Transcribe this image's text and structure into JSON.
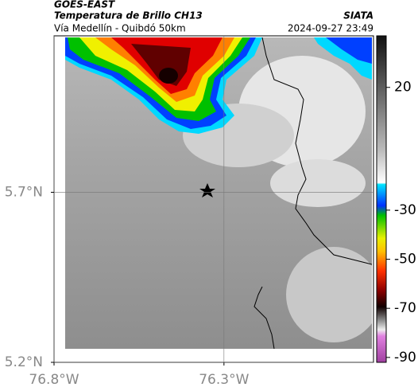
{
  "header": {
    "title": "GOES-EAST",
    "subtitle": "Temperatura de Brillo CH13",
    "location": "Vía Medellín - Quibdó 50km",
    "source": "SIATA",
    "datetime": "2024-09-27 23:49"
  },
  "map": {
    "xlim": [
      -76.8,
      -75.86
    ],
    "ylim": [
      5.2,
      6.16
    ],
    "xticks": [
      {
        "value": -76.8,
        "label": "76.8°W"
      },
      {
        "value": -76.3,
        "label": "76.3°W"
      }
    ],
    "yticks": [
      {
        "value": 5.7,
        "label": "5.7°N"
      },
      {
        "value": 5.2,
        "label": "5.2°N"
      }
    ],
    "grid": true
  },
  "colorbar": {
    "clim": [
      -92,
      41
    ],
    "ticks": [
      20,
      -30,
      -50,
      -70,
      -90
    ]
  }
}
